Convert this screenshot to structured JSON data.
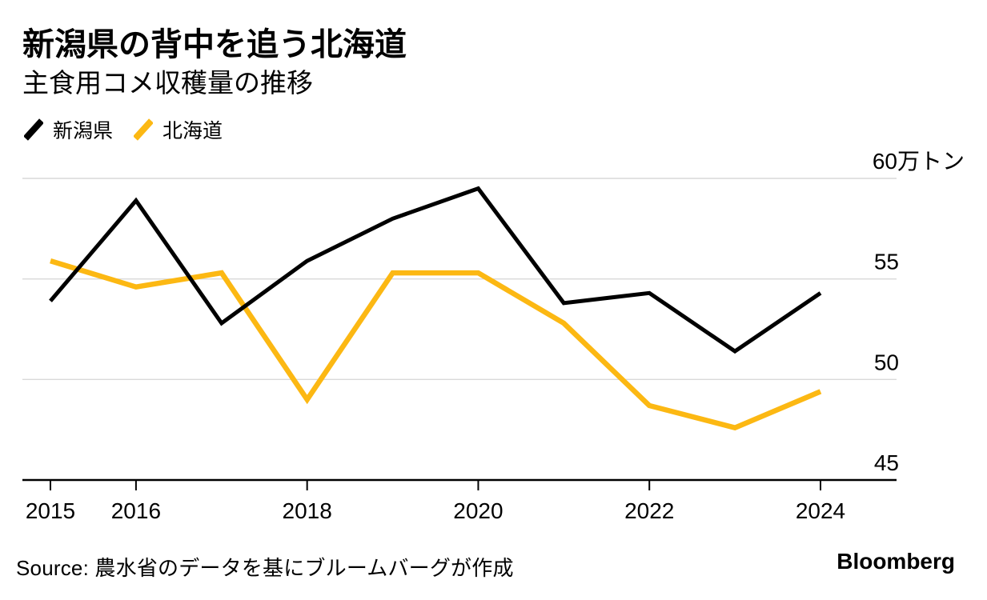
{
  "header": {
    "title": "新潟県の背中を追う北海道",
    "subtitle": "主食用コメ収穫量の推移"
  },
  "legend": [
    {
      "id": "niigata",
      "label": "新潟県",
      "color": "#000000"
    },
    {
      "id": "hokkaido",
      "label": "北海道",
      "color": "#FCB813"
    }
  ],
  "chart_data": {
    "type": "line",
    "title": "新潟県の背中を追う北海道",
    "subtitle": "主食用コメ収穫量の推移",
    "unit": "万トン",
    "x": [
      2015,
      2016,
      2017,
      2018,
      2019,
      2020,
      2021,
      2022,
      2023,
      2024
    ],
    "x_tick_labels": [
      "2015",
      "2016",
      "2018",
      "2020",
      "2022",
      "2024"
    ],
    "y_ticks": [
      {
        "value": 60,
        "label": "60万トン"
      },
      {
        "value": 55,
        "label": "55"
      },
      {
        "value": 50,
        "label": "50"
      },
      {
        "value": 45,
        "label": "45"
      }
    ],
    "ylim": [
      45,
      60.5
    ],
    "grid": true,
    "legend_position": "top-left",
    "series": [
      {
        "id": "niigata",
        "name": "新潟県",
        "color": "#000000",
        "values": [
          53.9,
          58.9,
          52.8,
          55.9,
          58.0,
          59.5,
          53.8,
          54.3,
          51.4,
          54.3
        ]
      },
      {
        "id": "hokkaido",
        "name": "北海道",
        "color": "#FCB813",
        "values": [
          55.9,
          54.6,
          55.3,
          49.0,
          55.3,
          55.3,
          52.8,
          48.7,
          47.6,
          49.4
        ]
      }
    ]
  },
  "colors": {
    "gridline": "#D9D9D9",
    "axis": "#000000",
    "background": "#FFFFFF"
  },
  "footer": {
    "source": "Source: 農水省のデータを基にブルームバーグが作成",
    "brand": "Bloomberg"
  }
}
